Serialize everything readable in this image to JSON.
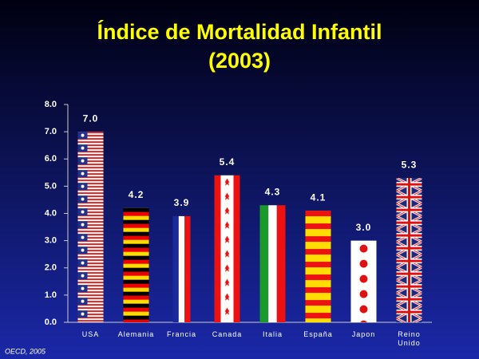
{
  "chart_data": {
    "type": "bar",
    "title": "Índice de Mortalidad Infantil",
    "subtitle": "(2003)",
    "categories": [
      "USA",
      "Alemania",
      "Francia",
      "Canada",
      "Italia",
      "España",
      "Japon",
      "Reino Unido"
    ],
    "values": [
      7.0,
      4.2,
      3.9,
      5.4,
      4.3,
      4.1,
      3.0,
      5.3
    ],
    "value_labels": [
      "7.0",
      "4.2",
      "3.9",
      "5.4",
      "4.3",
      "4.1",
      "3.0",
      "5.3"
    ],
    "ylim": [
      0,
      8
    ],
    "yticks": [
      {
        "value": 0,
        "label": "0.0"
      },
      {
        "value": 1,
        "label": "1.0"
      },
      {
        "value": 2,
        "label": "2.0"
      },
      {
        "value": 3,
        "label": "3.0"
      },
      {
        "value": 4,
        "label": "4.0"
      },
      {
        "value": 5,
        "label": "5.0"
      },
      {
        "value": 6,
        "label": "6.0"
      },
      {
        "value": 7,
        "label": "7.0"
      },
      {
        "value": 8,
        "label": "8.0"
      }
    ],
    "grid": false,
    "source": "OECD, 2005"
  }
}
